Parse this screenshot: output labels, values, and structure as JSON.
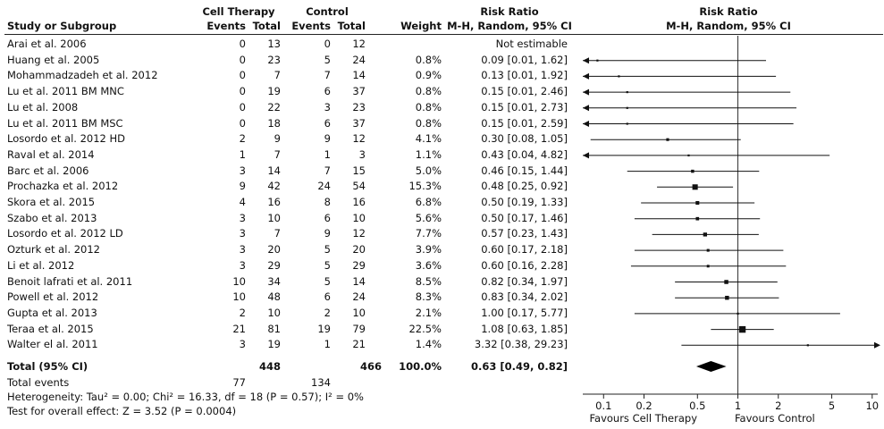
{
  "headers": {
    "group1": "Cell Therapy",
    "group2": "Control",
    "study": "Study or Subgroup",
    "events1": "Events",
    "total1": "Total",
    "events2": "Events",
    "total2": "Total",
    "weight": "Weight",
    "rr_title": "Risk Ratio",
    "rr_method": "M-H, Random, 95% CI",
    "plot_title": "Risk Ratio",
    "plot_method": "M-H, Random, 95% CI"
  },
  "studies": [
    {
      "name": "Arai et al. 2006",
      "e1": "0",
      "t1": "13",
      "e2": "0",
      "t2": "12",
      "weight": "",
      "ci": "Not estimable"
    },
    {
      "name": "Huang et al. 2005",
      "e1": "0",
      "t1": "23",
      "e2": "5",
      "t2": "24",
      "weight": "0.8%",
      "ci": "0.09 [0.01, 1.62]"
    },
    {
      "name": "Mohammadzadeh et al. 2012",
      "e1": "0",
      "t1": "7",
      "e2": "7",
      "t2": "14",
      "weight": "0.9%",
      "ci": "0.13 [0.01, 1.92]"
    },
    {
      "name": "Lu et al. 2011 BM MNC",
      "e1": "0",
      "t1": "19",
      "e2": "6",
      "t2": "37",
      "weight": "0.8%",
      "ci": "0.15 [0.01, 2.46]"
    },
    {
      "name": "Lu et al. 2008",
      "e1": "0",
      "t1": "22",
      "e2": "3",
      "t2": "23",
      "weight": "0.8%",
      "ci": "0.15 [0.01, 2.73]"
    },
    {
      "name": "Lu et al. 2011 BM MSC",
      "e1": "0",
      "t1": "18",
      "e2": "6",
      "t2": "37",
      "weight": "0.8%",
      "ci": "0.15 [0.01, 2.59]"
    },
    {
      "name": "Losordo et al. 2012 HD",
      "e1": "2",
      "t1": "9",
      "e2": "9",
      "t2": "12",
      "weight": "4.1%",
      "ci": "0.30 [0.08, 1.05]"
    },
    {
      "name": "Raval et al. 2014",
      "e1": "1",
      "t1": "7",
      "e2": "1",
      "t2": "3",
      "weight": "1.1%",
      "ci": "0.43 [0.04, 4.82]"
    },
    {
      "name": "Barc et al. 2006",
      "e1": "3",
      "t1": "14",
      "e2": "7",
      "t2": "15",
      "weight": "5.0%",
      "ci": "0.46 [0.15, 1.44]"
    },
    {
      "name": "Prochazka et al. 2012",
      "e1": "9",
      "t1": "42",
      "e2": "24",
      "t2": "54",
      "weight": "15.3%",
      "ci": "0.48 [0.25, 0.92]"
    },
    {
      "name": "Skora et al. 2015",
      "e1": "4",
      "t1": "16",
      "e2": "8",
      "t2": "16",
      "weight": "6.8%",
      "ci": "0.50 [0.19, 1.33]"
    },
    {
      "name": "Szabo et al. 2013",
      "e1": "3",
      "t1": "10",
      "e2": "6",
      "t2": "10",
      "weight": "5.6%",
      "ci": "0.50 [0.17, 1.46]"
    },
    {
      "name": "Losordo et al. 2012 LD",
      "e1": "3",
      "t1": "7",
      "e2": "9",
      "t2": "12",
      "weight": "7.7%",
      "ci": "0.57 [0.23, 1.43]"
    },
    {
      "name": "Ozturk et al. 2012",
      "e1": "3",
      "t1": "20",
      "e2": "5",
      "t2": "20",
      "weight": "3.9%",
      "ci": "0.60 [0.17, 2.18]"
    },
    {
      "name": "Li et al. 2012",
      "e1": "3",
      "t1": "29",
      "e2": "5",
      "t2": "29",
      "weight": "3.6%",
      "ci": "0.60 [0.16, 2.28]"
    },
    {
      "name": "Benoit lafrati et al. 2011",
      "e1": "10",
      "t1": "34",
      "e2": "5",
      "t2": "14",
      "weight": "8.5%",
      "ci": "0.82 [0.34, 1.97]"
    },
    {
      "name": "Powell et al. 2012",
      "e1": "10",
      "t1": "48",
      "e2": "6",
      "t2": "24",
      "weight": "8.3%",
      "ci": "0.83 [0.34, 2.02]"
    },
    {
      "name": "Gupta et al. 2013",
      "e1": "2",
      "t1": "10",
      "e2": "2",
      "t2": "10",
      "weight": "2.1%",
      "ci": "1.00 [0.17, 5.77]"
    },
    {
      "name": "Teraa et al. 2015",
      "e1": "21",
      "t1": "81",
      "e2": "19",
      "t2": "79",
      "weight": "22.5%",
      "ci": "1.08 [0.63, 1.85]"
    },
    {
      "name": "Walter el al. 2011",
      "e1": "3",
      "t1": "19",
      "e2": "1",
      "t2": "21",
      "weight": "1.4%",
      "ci": "3.32 [0.38, 29.23]"
    }
  ],
  "total": {
    "label": "Total (95% CI)",
    "t1": "448",
    "t2": "466",
    "weight": "100.0%",
    "ci": "0.63 [0.49, 0.82]"
  },
  "total_events": {
    "label": "Total events",
    "e1": "77",
    "e2": "134"
  },
  "heterogeneity": "Heterogeneity: Tau² = 0.00; Chi² = 16.33, df = 18 (P = 0.57); I² = 0%",
  "overall_effect": "Test for overall effect: Z = 3.52 (P = 0.0004)",
  "axis": {
    "favours_left": "Favours Cell Therapy",
    "favours_right": "Favours Control"
  },
  "chart_data": {
    "type": "scatter",
    "scale": "log",
    "xlim": [
      0.07,
      11
    ],
    "ticks": [
      0.1,
      0.2,
      0.5,
      1,
      2,
      5,
      10
    ],
    "tick_labels": [
      "0.1",
      "0.2",
      "0.5",
      "1",
      "2",
      "5",
      "10"
    ],
    "reference_line": 1,
    "points": [
      {
        "rr": null,
        "lo": null,
        "hi": null,
        "w": 0
      },
      {
        "rr": 0.09,
        "lo": 0.01,
        "hi": 1.62,
        "w": 0.8
      },
      {
        "rr": 0.13,
        "lo": 0.01,
        "hi": 1.92,
        "w": 0.9
      },
      {
        "rr": 0.15,
        "lo": 0.01,
        "hi": 2.46,
        "w": 0.8
      },
      {
        "rr": 0.15,
        "lo": 0.01,
        "hi": 2.73,
        "w": 0.8
      },
      {
        "rr": 0.15,
        "lo": 0.01,
        "hi": 2.59,
        "w": 0.8
      },
      {
        "rr": 0.3,
        "lo": 0.08,
        "hi": 1.05,
        "w": 4.1
      },
      {
        "rr": 0.43,
        "lo": 0.04,
        "hi": 4.82,
        "w": 1.1
      },
      {
        "rr": 0.46,
        "lo": 0.15,
        "hi": 1.44,
        "w": 5.0
      },
      {
        "rr": 0.48,
        "lo": 0.25,
        "hi": 0.92,
        "w": 15.3
      },
      {
        "rr": 0.5,
        "lo": 0.19,
        "hi": 1.33,
        "w": 6.8
      },
      {
        "rr": 0.5,
        "lo": 0.17,
        "hi": 1.46,
        "w": 5.6
      },
      {
        "rr": 0.57,
        "lo": 0.23,
        "hi": 1.43,
        "w": 7.7
      },
      {
        "rr": 0.6,
        "lo": 0.17,
        "hi": 2.18,
        "w": 3.9
      },
      {
        "rr": 0.6,
        "lo": 0.16,
        "hi": 2.28,
        "w": 3.6
      },
      {
        "rr": 0.82,
        "lo": 0.34,
        "hi": 1.97,
        "w": 8.5
      },
      {
        "rr": 0.83,
        "lo": 0.34,
        "hi": 2.02,
        "w": 8.3
      },
      {
        "rr": 1.0,
        "lo": 0.17,
        "hi": 5.77,
        "w": 2.1
      },
      {
        "rr": 1.08,
        "lo": 0.63,
        "hi": 1.85,
        "w": 22.5
      },
      {
        "rr": 3.32,
        "lo": 0.38,
        "hi": 29.23,
        "w": 1.4
      }
    ],
    "pooled": {
      "rr": 0.63,
      "lo": 0.49,
      "hi": 0.82
    }
  }
}
